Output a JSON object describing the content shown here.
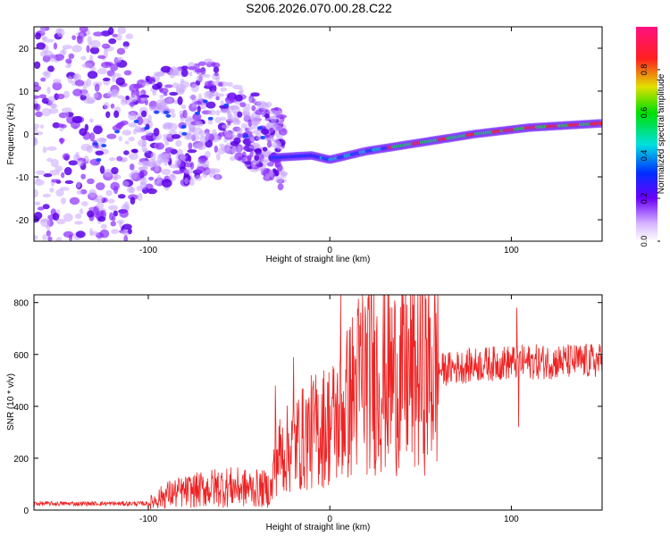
{
  "title": "S206.2026.070.00.28.C22",
  "chart_data": [
    {
      "type": "heatmap",
      "xlabel": "Height of straight line (km)",
      "ylabel": "Frequency (Hz)",
      "xlim": [
        -163,
        150
      ],
      "ylim": [
        -25,
        25
      ],
      "xticks": [
        -100,
        0,
        100
      ],
      "xtick_labels": [
        "-100",
        "0",
        "100"
      ],
      "yticks": [
        -20,
        -10,
        0,
        10,
        20
      ],
      "ytick_labels": [
        "-20",
        "-10",
        "0",
        "10",
        "20"
      ],
      "colorbar": {
        "label": "Normalized spectral amplitude",
        "range": [
          0,
          1
        ],
        "ticks": [
          0.0,
          0.2,
          0.4,
          0.6,
          0.8
        ],
        "tick_labels": [
          "0.0",
          "0.2",
          "0.4",
          "0.6",
          "0.8"
        ]
      },
      "trend": {
        "description": "scattered noise for x<-35; coherent line from about -5 Hz at x=-20 to about 2.5 Hz at x=150",
        "points": [
          [
            -30,
            -5.5
          ],
          [
            -10,
            -5.0
          ],
          [
            0,
            -6.0
          ],
          [
            20,
            -4.0
          ],
          [
            50,
            -2.0
          ],
          [
            80,
            0.0
          ],
          [
            110,
            1.5
          ],
          [
            150,
            2.5
          ]
        ]
      }
    },
    {
      "type": "line",
      "xlabel": "Height of straight line (km)",
      "ylabel": "SNR (10 * v/v)",
      "xlim": [
        -163,
        150
      ],
      "ylim": [
        0,
        830
      ],
      "xticks": [
        -100,
        0,
        100
      ],
      "xtick_labels": [
        "-100",
        "0",
        "100"
      ],
      "yticks": [
        0,
        200,
        400,
        600,
        800
      ],
      "ytick_labels": [
        "0",
        "200",
        "400",
        "600",
        "800"
      ],
      "series": [
        {
          "name": "SNR",
          "color": "#ee2222",
          "envelope": [
            [
              -163,
              25
            ],
            [
              -100,
              25
            ],
            [
              -90,
              60
            ],
            [
              -60,
              90
            ],
            [
              -32,
              80
            ],
            [
              -30,
              200
            ],
            [
              -10,
              300
            ],
            [
              5,
              350
            ],
            [
              18,
              520
            ],
            [
              40,
              510
            ],
            [
              60,
              540
            ],
            [
              80,
              560
            ],
            [
              100,
              570
            ],
            [
              150,
              575
            ]
          ],
          "spikes": [
            [
              -30,
              480
            ],
            [
              -20,
              590
            ],
            [
              6,
              830
            ],
            [
              18,
              830
            ],
            [
              103,
              780
            ],
            [
              104,
              320
            ]
          ]
        }
      ]
    }
  ]
}
